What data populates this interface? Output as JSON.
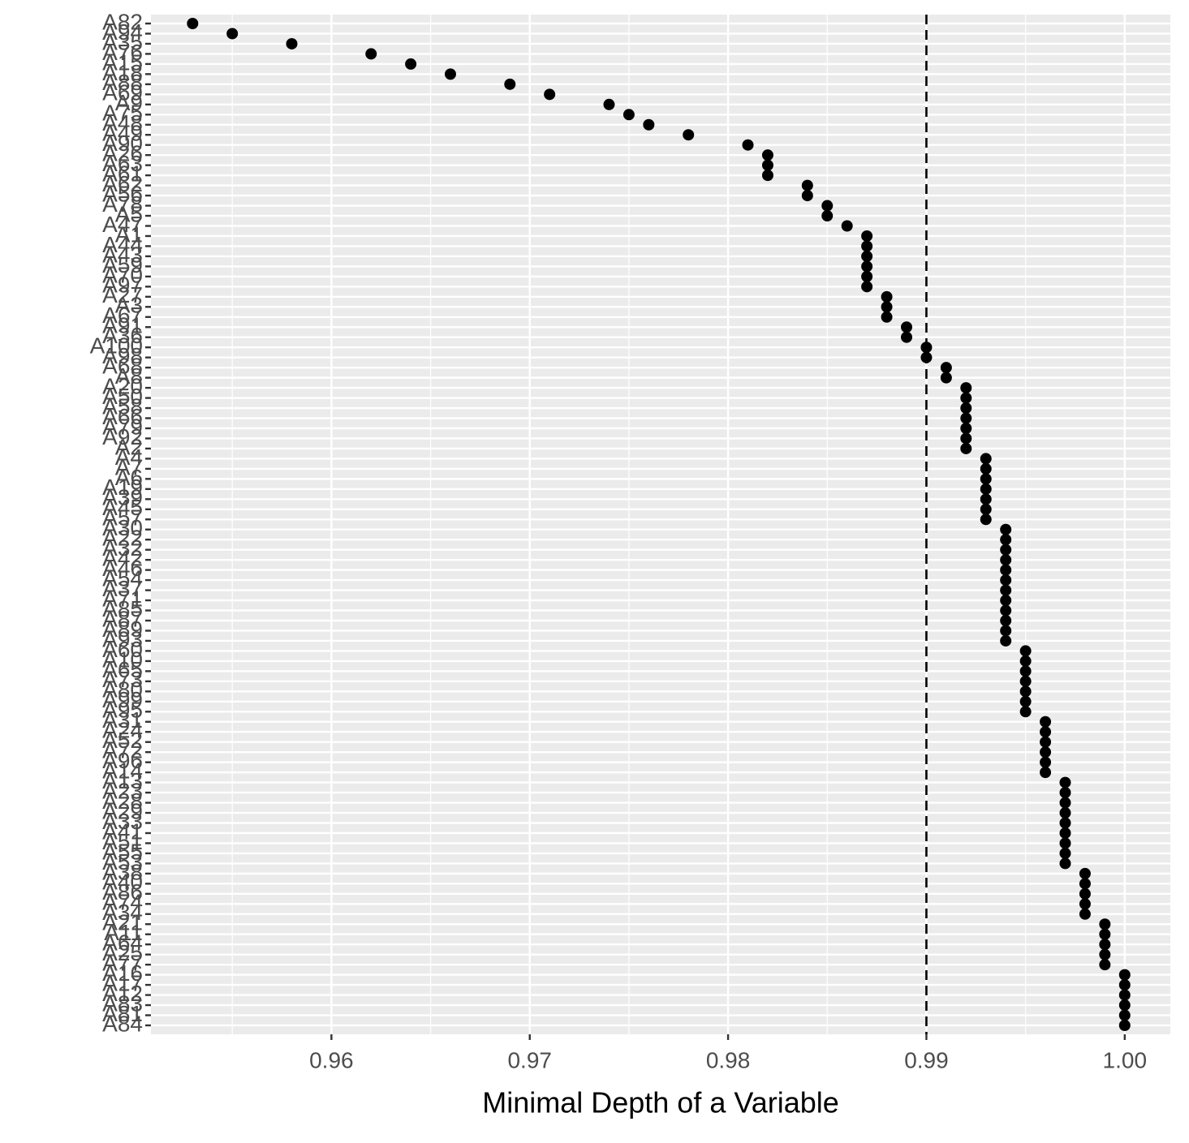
{
  "chart_data": {
    "type": "dot",
    "x_label": "Minimal Depth of a Variable",
    "categories": [
      "A82",
      "A94",
      "A35",
      "A76",
      "A15",
      "A18",
      "A88",
      "A69",
      "A9",
      "A75",
      "A48",
      "A49",
      "A90",
      "A26",
      "A63",
      "A61",
      "A62",
      "A56",
      "A78",
      "A5",
      "A47",
      "A1",
      "A44",
      "A43",
      "A59",
      "A70",
      "A97",
      "A27",
      "A3",
      "A67",
      "A91",
      "A36",
      "A100",
      "A98",
      "A68",
      "A8",
      "A20",
      "A50",
      "A58",
      "A66",
      "A79",
      "A92",
      "A2",
      "A4",
      "A7",
      "A6",
      "A19",
      "A39",
      "A45",
      "A57",
      "A30",
      "A22",
      "A32",
      "A42",
      "A46",
      "A54",
      "A37",
      "A71",
      "A85",
      "A87",
      "A89",
      "A93",
      "A60",
      "A10",
      "A65",
      "A73",
      "A80",
      "A99",
      "A95",
      "A31",
      "A24",
      "A52",
      "A72",
      "A96",
      "A14",
      "A13",
      "A23",
      "A28",
      "A29",
      "A33",
      "A41",
      "A51",
      "A55",
      "A53",
      "A38",
      "A40",
      "A86",
      "A74",
      "A34",
      "A21",
      "A11",
      "A64",
      "A25",
      "A77",
      "A16",
      "A17",
      "A12",
      "A83",
      "A81",
      "A84"
    ],
    "values": [
      0.953,
      0.955,
      0.958,
      0.962,
      0.964,
      0.966,
      0.969,
      0.971,
      0.974,
      0.975,
      0.976,
      0.978,
      0.981,
      0.982,
      0.982,
      0.982,
      0.984,
      0.984,
      0.985,
      0.985,
      0.986,
      0.987,
      0.987,
      0.987,
      0.987,
      0.987,
      0.987,
      0.988,
      0.988,
      0.988,
      0.989,
      0.989,
      0.99,
      0.99,
      0.991,
      0.991,
      0.992,
      0.992,
      0.992,
      0.992,
      0.992,
      0.992,
      0.992,
      0.993,
      0.993,
      0.993,
      0.993,
      0.993,
      0.993,
      0.993,
      0.994,
      0.994,
      0.994,
      0.994,
      0.994,
      0.994,
      0.994,
      0.994,
      0.994,
      0.994,
      0.994,
      0.994,
      0.995,
      0.995,
      0.995,
      0.995,
      0.995,
      0.995,
      0.995,
      0.996,
      0.996,
      0.996,
      0.996,
      0.996,
      0.996,
      0.997,
      0.997,
      0.997,
      0.997,
      0.997,
      0.997,
      0.997,
      0.997,
      0.997,
      0.998,
      0.998,
      0.998,
      0.998,
      0.998,
      0.999,
      0.999,
      0.999,
      0.999,
      0.999,
      1,
      1,
      1,
      1,
      1,
      1
    ],
    "color": "#000000",
    "xlim": [
      0.9509,
      1.0023
    ],
    "xticks": [
      0.96,
      0.97,
      0.98,
      0.99,
      {
        "value": 1,
        "label": "1.00"
      }
    ],
    "vline": 0.99,
    "grid": true
  }
}
